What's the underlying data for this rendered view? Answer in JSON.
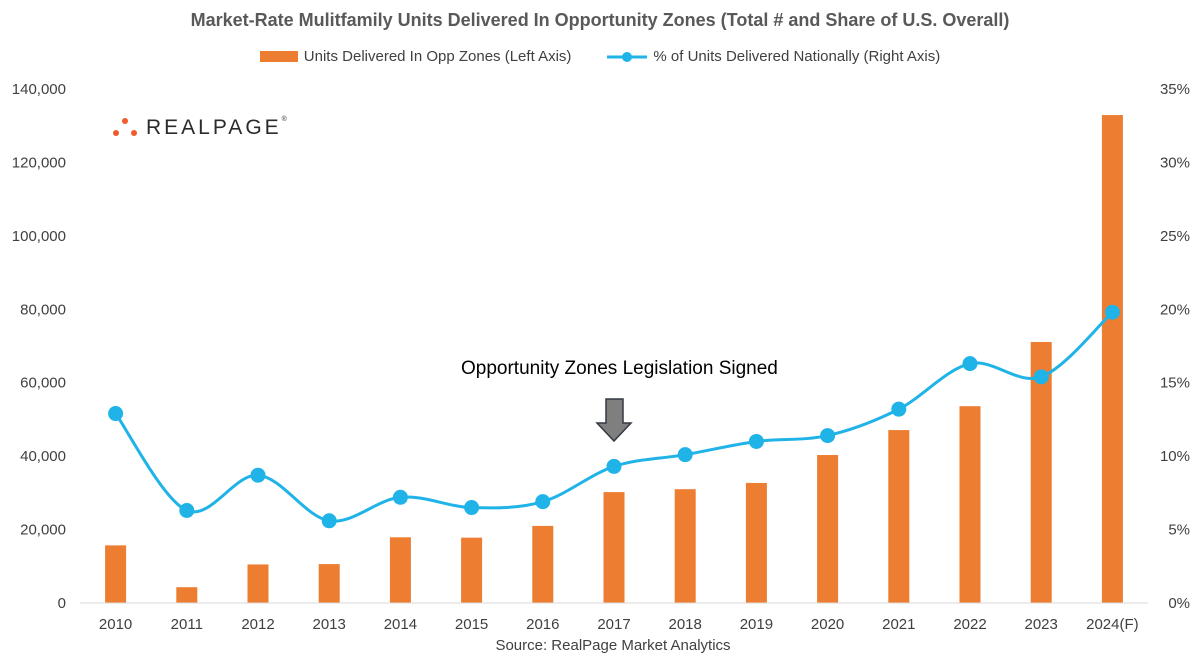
{
  "chart_data": {
    "type": "bar+line",
    "title": "Market-Rate Mulitfamily Units Delivered In Opportunity Zones (Total # and Share of U.S. Overall)",
    "categories": [
      "2010",
      "2011",
      "2012",
      "2013",
      "2014",
      "2015",
      "2016",
      "2017",
      "2018",
      "2019",
      "2020",
      "2021",
      "2022",
      "2023",
      "2024(F)"
    ],
    "series": [
      {
        "name": "Units Delivered In Opp Zones (Left Axis)",
        "type": "bar",
        "axis": "left",
        "color": "#ED7D31",
        "values": [
          15700,
          4300,
          10500,
          10600,
          17900,
          17800,
          21000,
          30200,
          31000,
          32700,
          40300,
          47100,
          53600,
          71100,
          132900
        ]
      },
      {
        "name": "% of Units Delivered Nationally (Right Axis)",
        "type": "line",
        "axis": "right",
        "color": "#1FB3E8",
        "values": [
          12.9,
          6.3,
          8.7,
          5.6,
          7.2,
          6.5,
          6.9,
          9.3,
          10.1,
          11.0,
          11.4,
          13.2,
          16.3,
          15.4,
          19.8
        ]
      }
    ],
    "left_axis": {
      "ylim": [
        0,
        140000
      ],
      "ticks": [
        0,
        20000,
        40000,
        60000,
        80000,
        100000,
        120000,
        140000
      ],
      "tick_labels": [
        "0",
        "20,000",
        "40,000",
        "60,000",
        "80,000",
        "100,000",
        "120,000",
        "140,000"
      ]
    },
    "right_axis": {
      "ylim": [
        0,
        35
      ],
      "ticks": [
        0,
        5,
        10,
        15,
        20,
        25,
        30,
        35
      ],
      "tick_labels": [
        "0%",
        "5%",
        "10%",
        "15%",
        "20%",
        "25%",
        "30%",
        "35%"
      ]
    },
    "legend": [
      "Units Delivered In Opp Zones (Left Axis)",
      "% of Units Delivered Nationally (Right Axis)"
    ],
    "legend_position": "top-center",
    "annotation": {
      "text": "Opportunity Zones Legislation Signed",
      "category": "2017"
    },
    "source": "Source: RealPage Market Analytics"
  },
  "logo": {
    "text": "REALPAGE",
    "tm": "®"
  },
  "colors": {
    "bar": "#ED7D31",
    "line": "#1FB3E8",
    "arrow": "#7F7F7F",
    "text": "#404040"
  }
}
